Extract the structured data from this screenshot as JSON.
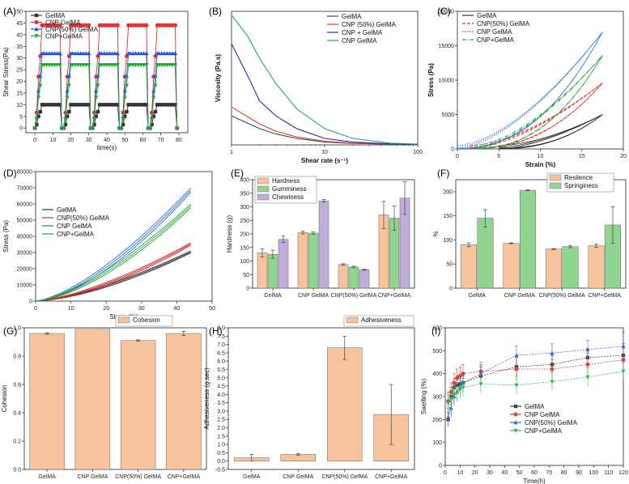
{
  "chart_data": [
    {
      "id": "A",
      "panel_label": "(A)",
      "type": "line",
      "xlabel": "time(s)",
      "ylabel": "Shear Stress(Pa)",
      "xlim": [
        -5,
        85
      ],
      "ylim": [
        -2,
        50
      ],
      "xticks": [
        0,
        10,
        20,
        30,
        40,
        50,
        60,
        70,
        80
      ],
      "yticks": [
        0,
        5,
        10,
        15,
        20,
        25,
        30,
        35,
        40,
        45,
        50
      ],
      "series": [
        {
          "name": "GelMA",
          "color": "#333333",
          "marker": "square",
          "high": 10,
          "mid": 5
        },
        {
          "name": "CNP GelMA",
          "color": "#e8312f",
          "marker": "circle",
          "high": 44,
          "mid": 22
        },
        {
          "name": "CNP(50%) GelMA",
          "color": "#2455e0",
          "marker": "triangle",
          "high": 32,
          "mid": 16
        },
        {
          "name": "CNP+GelMA",
          "color": "#20a83a",
          "marker": "tri-down",
          "high": 27,
          "mid": 13
        }
      ],
      "step_segments": [
        [
          0,
          15
        ],
        [
          16,
          31
        ],
        [
          32,
          47
        ],
        [
          48,
          63
        ],
        [
          64,
          79
        ]
      ]
    },
    {
      "id": "B",
      "panel_label": "(B)",
      "type": "line",
      "xscale": "log",
      "xlabel": "Shear rate (s⁻¹)",
      "ylabel": "Viscosity (Pa.s)",
      "xlim": [
        1,
        100
      ],
      "ylim": [
        0,
        370
      ],
      "xticks": [
        "1",
        "10",
        "100"
      ],
      "series": [
        {
          "name": "GelMA",
          "color": "#444444",
          "x": [
            1,
            2,
            3,
            5,
            10,
            20,
            50,
            100
          ],
          "y": [
            80,
            45,
            30,
            18,
            8,
            4,
            2,
            1
          ]
        },
        {
          "name": "CNP (50%) GelMA",
          "color": "#e03a2e",
          "x": [
            1,
            2,
            3,
            5,
            10,
            20,
            50,
            100
          ],
          "y": [
            105,
            58,
            38,
            22,
            10,
            5,
            2,
            1
          ]
        },
        {
          "name": "CNP + GelMA",
          "color": "#2a2ab8",
          "x": [
            1,
            1.5,
            2,
            3,
            5,
            10,
            20,
            50,
            100
          ],
          "y": [
            280,
            190,
            122,
            80,
            45,
            18,
            8,
            3,
            1
          ]
        },
        {
          "name": "CNP GelMA",
          "color": "#1f9e8e",
          "x": [
            1,
            1.5,
            2,
            3,
            5,
            10,
            20,
            50,
            100
          ],
          "y": [
            360,
            300,
            240,
            170,
            100,
            45,
            18,
            5,
            2
          ]
        }
      ]
    },
    {
      "id": "C",
      "panel_label": "(C)",
      "type": "line",
      "xlabel": "Strain (%)",
      "ylabel": "Stress (Pa)",
      "xlim": [
        0,
        20
      ],
      "ylim": [
        0,
        20000
      ],
      "xticks": [
        0,
        5,
        10,
        15,
        20
      ],
      "yticks": [
        0,
        5000,
        10000,
        15000,
        20000
      ],
      "series": [
        {
          "name": "GelMA",
          "color": "#333333",
          "dash": "",
          "max": 5000
        },
        {
          "name": "CNP(50%) GelMA",
          "color": "#e8312f",
          "dash": "4,2",
          "max": 9600
        },
        {
          "name": "CNP GelMA",
          "color": "#2f6fe0",
          "dash": "1.5,1.5",
          "max": 17000
        },
        {
          "name": "CNP+GelMA",
          "color": "#22a33c",
          "dash": "5,2,1,2",
          "max": 13600
        }
      ]
    },
    {
      "id": "D",
      "panel_label": "(D)",
      "type": "line",
      "xlabel": "Strain (%)",
      "ylabel": "Stress (Pa)",
      "xlim": [
        0,
        50
      ],
      "ylim": [
        0,
        80000
      ],
      "xticks": [
        0,
        10,
        20,
        30,
        40,
        50
      ],
      "yticks": [
        0,
        10000,
        20000,
        30000,
        40000,
        50000,
        60000,
        70000,
        80000
      ],
      "series": [
        {
          "name": "GelMA",
          "color": "#333333",
          "max": 31000
        },
        {
          "name": "CNP(50%) GelMA",
          "color": "#d8262a",
          "max": 36000
        },
        {
          "name": "CNP GelMA",
          "color": "#2a6ad8",
          "max": 70000
        },
        {
          "name": "CNP+GelMA",
          "color": "#22a33c",
          "max": 60000
        }
      ]
    },
    {
      "id": "E",
      "panel_label": "(E)",
      "type": "bar",
      "ylabel": "Hardness (g)",
      "ylim": [
        0,
        400
      ],
      "yticks": [
        0,
        50,
        100,
        150,
        200,
        250,
        300,
        350,
        400
      ],
      "categories": [
        "GelMA",
        "CNP GelMA",
        "CNP(50%) GelMA",
        "CNP+GelMA"
      ],
      "series": [
        {
          "name": "Hardness",
          "color": "#f7c39c",
          "values": [
            130,
            205,
            87,
            270
          ],
          "errors": [
            15,
            5,
            3,
            50
          ]
        },
        {
          "name": "Gumminess",
          "color": "#8fd48f",
          "values": [
            125,
            203,
            78,
            258
          ],
          "errors": [
            15,
            4,
            3,
            45
          ]
        },
        {
          "name": "Chewiness",
          "color": "#c0addb",
          "values": [
            180,
            322,
            68,
            332
          ],
          "errors": [
            12,
            5,
            2,
            60
          ]
        }
      ]
    },
    {
      "id": "F",
      "panel_label": "(F)",
      "type": "bar",
      "ylabel": "%",
      "ylim": [
        0,
        225
      ],
      "yticks": [
        0,
        50,
        100,
        150,
        200
      ],
      "categories": [
        "GelMA",
        "CNP GelMA",
        "CNP(50%) GelMA",
        "CNP+GelMA"
      ],
      "series": [
        {
          "name": "Resilence",
          "color": "#f7c39c",
          "values": [
            90,
            93,
            81,
            88
          ],
          "errors": [
            4,
            1,
            1,
            3
          ]
        },
        {
          "name": "Springiness",
          "color": "#8fd48f",
          "values": [
            145,
            203,
            86,
            131
          ],
          "errors": [
            18,
            1,
            2,
            38
          ]
        }
      ]
    },
    {
      "id": "G",
      "panel_label": "(G)",
      "type": "bar",
      "ylabel": "Cohesion",
      "ylim": [
        0,
        1.0
      ],
      "yticks": [
        0.0,
        0.2,
        0.4,
        0.6,
        0.8,
        1.0
      ],
      "categories": [
        "GelMA",
        "CNP GelMA",
        "CNP(50%) GelMA",
        "CNP+GelMA"
      ],
      "series": [
        {
          "name": "Cohesion",
          "color": "#f7c39c",
          "values": [
            0.96,
            0.99,
            0.91,
            0.96
          ],
          "errors": [
            0.005,
            0,
            0.005,
            0.015
          ]
        }
      ]
    },
    {
      "id": "H",
      "panel_label": "(H)",
      "type": "bar",
      "ylabel": "Adhesiveness (g.sec)",
      "ylim": [
        -0.5,
        8
      ],
      "yticks": [
        -0.5,
        0.0,
        0.5,
        1.0,
        1.5,
        2.0,
        2.5,
        3.0,
        3.5,
        4.0,
        4.5,
        5.0,
        5.5,
        6.0,
        6.5,
        7.0,
        7.5,
        8.0
      ],
      "categories": [
        "GelMA",
        "CNP GelMA",
        "CNP(50%) GelMA",
        "CNP+GelMA"
      ],
      "series": [
        {
          "name": "Adhesiveness",
          "color": "#f7c39c",
          "values": [
            0.2,
            0.4,
            6.8,
            2.8
          ],
          "errors": [
            0.2,
            0.05,
            0.7,
            1.8
          ]
        }
      ]
    },
    {
      "id": "I",
      "panel_label": "(I)",
      "type": "line",
      "xlabel": "Time(h)",
      "ylabel": "Swelling (%)",
      "xlim": [
        0,
        120
      ],
      "ylim": [
        0,
        600
      ],
      "xticks": [
        0,
        10,
        20,
        30,
        40,
        50,
        60,
        70,
        80,
        90,
        100,
        110,
        120
      ],
      "yticks": [
        0,
        100,
        200,
        300,
        400,
        500,
        600
      ],
      "x": [
        2,
        4,
        6,
        8,
        10,
        12,
        24,
        48,
        72,
        96,
        120
      ],
      "series": [
        {
          "name": "GelMA",
          "color": "#444444",
          "marker": "square",
          "values": [
            200,
            300,
            340,
            350,
            355,
            360,
            390,
            430,
            440,
            470,
            480
          ],
          "errors": [
            30,
            40,
            40,
            40,
            30,
            30,
            40,
            40,
            40,
            40,
            50
          ]
        },
        {
          "name": "CNP GelMA",
          "color": "#e04040",
          "marker": "circle",
          "values": [
            280,
            320,
            360,
            380,
            390,
            400,
            410,
            420,
            420,
            440,
            460
          ],
          "errors": [
            40,
            40,
            40,
            40,
            40,
            40,
            40,
            50,
            40,
            50,
            50
          ]
        },
        {
          "name": "CNP(50%) GelMA",
          "color": "#3a6ad8",
          "marker": "triangle",
          "values": [
            210,
            250,
            300,
            320,
            340,
            360,
            400,
            480,
            490,
            505,
            520
          ],
          "errors": [
            40,
            40,
            40,
            40,
            40,
            40,
            40,
            40,
            40,
            40,
            60
          ]
        },
        {
          "name": "CNP+GelMA",
          "color": "#3ab84a",
          "marker": "tri-down",
          "values": [
            270,
            290,
            310,
            320,
            330,
            340,
            355,
            350,
            365,
            385,
            410
          ],
          "errors": [
            40,
            40,
            40,
            40,
            40,
            40,
            40,
            40,
            40,
            40,
            40
          ]
        }
      ]
    }
  ]
}
